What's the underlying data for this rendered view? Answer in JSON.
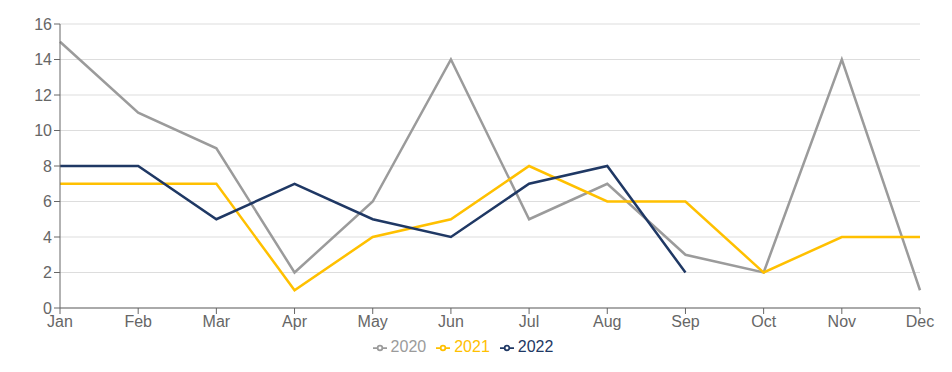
{
  "chart_data": {
    "type": "line",
    "categories": [
      "Jan",
      "Feb",
      "Mar",
      "Apr",
      "May",
      "Jun",
      "Jul",
      "Aug",
      "Sep",
      "Oct",
      "Nov",
      "Dec"
    ],
    "series": [
      {
        "name": "2020",
        "color": "#9B9B9B",
        "values": [
          15,
          11,
          9,
          2,
          6,
          14,
          5,
          7,
          3,
          2,
          14,
          1
        ]
      },
      {
        "name": "2021",
        "color": "#FFC000",
        "values": [
          7,
          7,
          7,
          1,
          4,
          5,
          8,
          6,
          6,
          2,
          4,
          4
        ]
      },
      {
        "name": "2022",
        "color": "#1F3864",
        "values": [
          8,
          8,
          5,
          7,
          5,
          4,
          7,
          8,
          2,
          null,
          null,
          null
        ]
      }
    ],
    "ylim": [
      0,
      16
    ],
    "yticks": [
      0,
      2,
      4,
      6,
      8,
      10,
      12,
      14,
      16
    ],
    "grid": true,
    "legend": "bottom"
  }
}
